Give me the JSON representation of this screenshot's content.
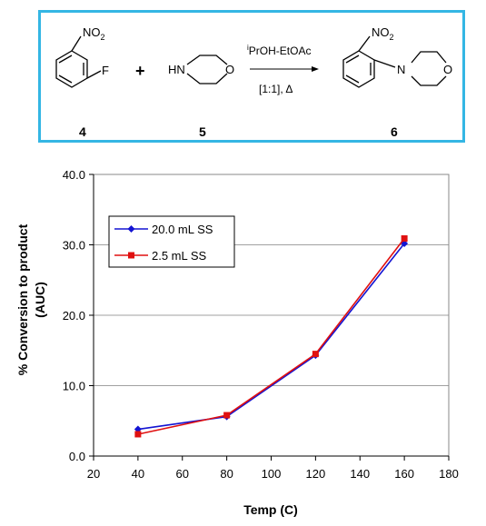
{
  "scheme": {
    "reactant1_substituents": {
      "nitro": "NO",
      "nitro_sub": "2",
      "halogen": "F"
    },
    "plus": "+",
    "reactant2_atoms": {
      "nh": "HN",
      "o": "O"
    },
    "conditions_top": {
      "sup": "i",
      "text": "PrOH-EtOAc"
    },
    "conditions_bottom": "[1:1], Δ",
    "product_atoms": {
      "nitro": "NO",
      "nitro_sub": "2",
      "n": "N",
      "o": "O"
    },
    "compound_labels": [
      "4",
      "5",
      "6"
    ],
    "border_color": "#34b6e4"
  },
  "chart_data": {
    "type": "line",
    "xlabel": "Temp (C)",
    "ylabel_line1": "% Conversion to product",
    "ylabel_line2": "(AUC)",
    "xlim": [
      20,
      180
    ],
    "ylim": [
      0,
      40
    ],
    "x_ticks": [
      "20",
      "40",
      "60",
      "80",
      "100",
      "120",
      "140",
      "160",
      "180"
    ],
    "y_ticks": [
      "0.0",
      "10.0",
      "20.0",
      "30.0",
      "40.0"
    ],
    "grid": "horizontal",
    "legend_position": "upper-left",
    "series": [
      {
        "name": "20.0 mL SS",
        "color": "#1414d2",
        "marker": "diamond",
        "x": [
          40,
          80,
          120,
          160
        ],
        "y": [
          3.8,
          5.6,
          14.3,
          30.2
        ]
      },
      {
        "name": "2.5 mL SS",
        "color": "#e01010",
        "marker": "square",
        "x": [
          40,
          80,
          120,
          160
        ],
        "y": [
          3.1,
          5.8,
          14.5,
          30.9
        ]
      }
    ]
  }
}
